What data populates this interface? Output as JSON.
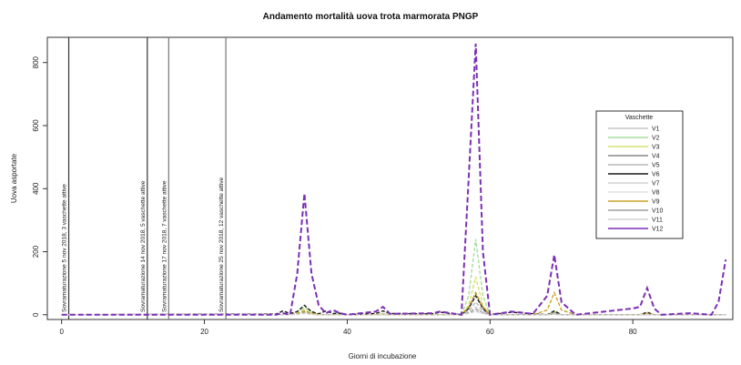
{
  "chart_data": {
    "type": "line",
    "title": "Andamento mortalità uova trota marmorata PNGP",
    "xlabel": "Giorni di incubazione",
    "ylabel": "Uova asportate",
    "xlim": [
      -2,
      94
    ],
    "ylim": [
      -15,
      880
    ],
    "x_ticks": [
      0,
      20,
      40,
      60,
      80
    ],
    "y_ticks": [
      0,
      200,
      400,
      600,
      800
    ],
    "legend": {
      "title": "Vaschette",
      "position": "right",
      "entries": [
        "V1",
        "V2",
        "V3",
        "V4",
        "V5",
        "V6",
        "V7",
        "V8",
        "V9",
        "V10",
        "V11",
        "V12"
      ]
    },
    "vlines": [
      {
        "x": 1,
        "label": "Sovramaturazione 5 nov 2018, 3 vaschette attive",
        "color": "#333333"
      },
      {
        "x": 12,
        "label": "Sovramaturazione 14 nov 2018, 5 vaschette attive",
        "color": "#333333"
      },
      {
        "x": 15,
        "label": "Sovramaturazione 17 nov 2018, 7 vaschette attive",
        "color": "#777777"
      },
      {
        "x": 23,
        "label": "Sovramaturazione 25 nov 2018, 12 vaschette attive",
        "color": "#777777"
      }
    ],
    "x": [
      0,
      30,
      31,
      32,
      33,
      34,
      35,
      36,
      37,
      38,
      39,
      40,
      44,
      45,
      46,
      52,
      53,
      56,
      57,
      58,
      59,
      60,
      63,
      66,
      68,
      69,
      70,
      72,
      80,
      81,
      82,
      83,
      84,
      88,
      91,
      92,
      93
    ],
    "series": [
      {
        "name": "V1",
        "color": "#c6c6c6",
        "values": [
          0,
          0,
          0,
          0,
          4,
          8,
          4,
          0,
          0,
          0,
          0,
          0,
          0,
          2,
          0,
          0,
          0,
          0,
          5,
          10,
          5,
          0,
          0,
          0,
          0,
          4,
          0,
          0,
          0,
          0,
          3,
          0,
          0,
          0,
          0,
          0,
          0
        ]
      },
      {
        "name": "V2",
        "color": "#a8dca0",
        "values": [
          0,
          0,
          0,
          0,
          8,
          25,
          8,
          0,
          0,
          0,
          0,
          0,
          0,
          3,
          0,
          0,
          0,
          0,
          60,
          240,
          60,
          0,
          0,
          0,
          0,
          10,
          0,
          0,
          0,
          0,
          4,
          0,
          0,
          0,
          0,
          0,
          0
        ]
      },
      {
        "name": "V3",
        "color": "#d8e06a",
        "values": [
          0,
          0,
          0,
          0,
          6,
          18,
          6,
          0,
          0,
          0,
          0,
          0,
          0,
          2,
          0,
          0,
          0,
          0,
          30,
          120,
          30,
          0,
          0,
          0,
          0,
          8,
          0,
          0,
          0,
          0,
          3,
          0,
          0,
          0,
          0,
          0,
          0
        ]
      },
      {
        "name": "V4",
        "color": "#8a8a8a",
        "values": [
          0,
          0,
          0,
          0,
          4,
          12,
          4,
          0,
          0,
          0,
          0,
          0,
          0,
          2,
          0,
          0,
          0,
          0,
          20,
          70,
          20,
          0,
          0,
          0,
          0,
          6,
          0,
          0,
          0,
          0,
          2,
          0,
          0,
          0,
          0,
          0,
          0
        ]
      },
      {
        "name": "V5",
        "color": "#b8b8b8",
        "values": [
          0,
          0,
          0,
          0,
          3,
          8,
          3,
          0,
          0,
          0,
          0,
          0,
          0,
          1,
          0,
          0,
          0,
          0,
          12,
          40,
          12,
          0,
          0,
          0,
          0,
          4,
          0,
          0,
          0,
          0,
          2,
          0,
          0,
          0,
          0,
          0,
          0
        ]
      },
      {
        "name": "V6",
        "color": "#1a1a1a",
        "values": [
          0,
          2,
          12,
          4,
          10,
          30,
          10,
          3,
          12,
          4,
          5,
          0,
          4,
          12,
          4,
          3,
          8,
          0,
          20,
          60,
          20,
          0,
          8,
          3,
          0,
          12,
          0,
          0,
          0,
          0,
          8,
          0,
          0,
          0,
          0,
          0,
          0
        ]
      },
      {
        "name": "V7",
        "color": "#cfcfcf",
        "values": [
          0,
          0,
          0,
          0,
          2,
          6,
          2,
          0,
          0,
          0,
          0,
          0,
          0,
          1,
          0,
          0,
          0,
          0,
          8,
          25,
          8,
          0,
          0,
          0,
          0,
          3,
          0,
          0,
          0,
          0,
          1,
          0,
          0,
          0,
          0,
          0,
          0
        ]
      },
      {
        "name": "V8",
        "color": "#e0e0e0",
        "values": [
          0,
          0,
          0,
          0,
          2,
          5,
          2,
          0,
          0,
          0,
          0,
          0,
          0,
          1,
          0,
          0,
          0,
          0,
          6,
          20,
          6,
          0,
          0,
          0,
          0,
          2,
          0,
          0,
          0,
          0,
          1,
          0,
          0,
          0,
          0,
          0,
          0
        ]
      },
      {
        "name": "V9",
        "color": "#c9a227",
        "values": [
          0,
          0,
          0,
          0,
          4,
          10,
          4,
          0,
          0,
          0,
          0,
          0,
          0,
          2,
          0,
          0,
          0,
          0,
          25,
          70,
          25,
          0,
          0,
          0,
          15,
          70,
          15,
          0,
          0,
          0,
          4,
          0,
          0,
          0,
          0,
          0,
          0
        ]
      },
      {
        "name": "V10",
        "color": "#9f9f9f",
        "values": [
          0,
          0,
          0,
          0,
          2,
          6,
          2,
          0,
          0,
          0,
          0,
          0,
          0,
          1,
          0,
          0,
          0,
          0,
          6,
          18,
          6,
          0,
          0,
          0,
          0,
          2,
          0,
          0,
          0,
          0,
          1,
          0,
          0,
          0,
          0,
          0,
          0
        ]
      },
      {
        "name": "V11",
        "color": "#d4d4d4",
        "values": [
          0,
          0,
          0,
          0,
          1,
          4,
          1,
          0,
          0,
          0,
          0,
          0,
          0,
          1,
          0,
          0,
          0,
          0,
          4,
          12,
          4,
          0,
          0,
          0,
          0,
          2,
          0,
          0,
          0,
          0,
          1,
          0,
          0,
          0,
          0,
          0,
          0
        ]
      },
      {
        "name": "V12",
        "color": "#7b2fb5",
        "values": [
          0,
          0,
          5,
          0,
          130,
          385,
          130,
          30,
          5,
          15,
          5,
          0,
          10,
          25,
          3,
          5,
          10,
          0,
          430,
          860,
          200,
          0,
          10,
          3,
          60,
          190,
          40,
          0,
          20,
          25,
          85,
          20,
          0,
          5,
          0,
          40,
          175
        ]
      }
    ]
  }
}
